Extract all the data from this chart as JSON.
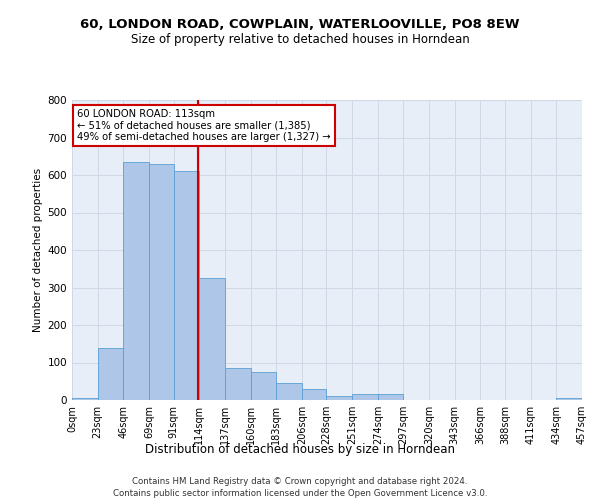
{
  "title": "60, LONDON ROAD, COWPLAIN, WATERLOOVILLE, PO8 8EW",
  "subtitle": "Size of property relative to detached houses in Horndean",
  "xlabel": "Distribution of detached houses by size in Horndean",
  "ylabel": "Number of detached properties",
  "property_size": 113,
  "bin_edges": [
    0,
    23,
    46,
    69,
    91,
    114,
    137,
    160,
    183,
    206,
    228,
    251,
    274,
    297,
    320,
    343,
    366,
    388,
    411,
    434,
    457
  ],
  "bin_labels": [
    "0sqm",
    "23sqm",
    "46sqm",
    "69sqm",
    "91sqm",
    "114sqm",
    "137sqm",
    "160sqm",
    "183sqm",
    "206sqm",
    "228sqm",
    "251sqm",
    "274sqm",
    "297sqm",
    "320sqm",
    "343sqm",
    "366sqm",
    "388sqm",
    "411sqm",
    "434sqm",
    "457sqm"
  ],
  "bar_heights": [
    5,
    140,
    635,
    630,
    610,
    325,
    85,
    75,
    45,
    30,
    10,
    15,
    15,
    0,
    0,
    0,
    0,
    0,
    0,
    5
  ],
  "bar_color": "#aec6e8",
  "bar_edge_color": "#5a9fd4",
  "highlight_line_color": "#cc0000",
  "annotation_box_color": "#cc0000",
  "grid_color": "#d0d8e8",
  "background_color": "#e8eef8",
  "ylim": [
    0,
    800
  ],
  "yticks": [
    0,
    100,
    200,
    300,
    400,
    500,
    600,
    700,
    800
  ],
  "footer_line1": "Contains HM Land Registry data © Crown copyright and database right 2024.",
  "footer_line2": "Contains public sector information licensed under the Open Government Licence v3.0.",
  "annotation_text_line1": "60 LONDON ROAD: 113sqm",
  "annotation_text_line2": "← 51% of detached houses are smaller (1,385)",
  "annotation_text_line3": "49% of semi-detached houses are larger (1,327) →"
}
